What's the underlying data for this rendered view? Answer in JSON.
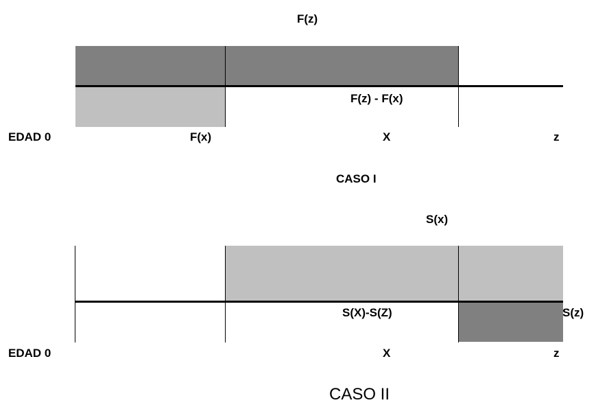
{
  "caso1": {
    "label_fz": "F(z)",
    "label_fz_minus_fx": "F(z) - F(x)",
    "label_edad0": "EDAD 0",
    "label_fx": "F(x)",
    "label_x": "X",
    "label_z": "z",
    "title": "CASO I"
  },
  "caso2": {
    "label_sx": "S(x)",
    "label_sx_minus_sz": "S(X)-S(Z)",
    "label_sz": "S(z)",
    "label_edad0": "EDAD 0",
    "label_x": "X",
    "label_z": "z",
    "title": "CASO II"
  },
  "colors": {
    "dark_fill": "#808080",
    "light_fill": "#c0c0c0",
    "axis": "#000000"
  }
}
